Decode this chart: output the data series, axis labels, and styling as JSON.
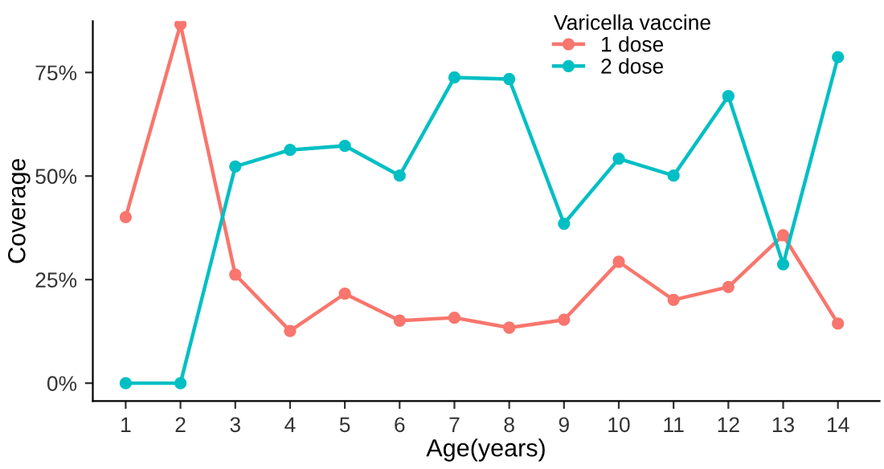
{
  "chart_data": {
    "type": "line",
    "xlabel": "Age(years)",
    "ylabel": "Coverage",
    "legend_title": "Varicella vaccine",
    "x": [
      1,
      2,
      3,
      4,
      5,
      6,
      7,
      8,
      9,
      10,
      11,
      12,
      13,
      14
    ],
    "series": [
      {
        "name": "1 dose",
        "color": "#f8766d",
        "values": [
          40.1,
          86.6,
          26.2,
          12.6,
          21.6,
          15.1,
          15.8,
          13.4,
          15.3,
          29.3,
          20.1,
          23.2,
          35.7,
          14.4
        ]
      },
      {
        "name": "2 dose",
        "color": "#00bfc4",
        "values": [
          0,
          0,
          52.3,
          56.3,
          57.3,
          50.1,
          73.8,
          73.4,
          38.5,
          54.2,
          50.1,
          69.3,
          28.7,
          78.7
        ]
      }
    ],
    "xlim": [
      0.4,
      14.76
    ],
    "xticks": [
      1,
      2,
      3,
      4,
      5,
      6,
      7,
      8,
      9,
      10,
      11,
      12,
      13,
      14
    ],
    "ylim": [
      -4.3,
      87.4
    ],
    "yticks": [
      {
        "value": 0,
        "label": "0%"
      },
      {
        "value": 25,
        "label": "25%"
      },
      {
        "value": 50,
        "label": "50%"
      },
      {
        "value": 75,
        "label": "75%"
      }
    ],
    "grid": false,
    "legend": "top right",
    "marker": "circle",
    "line_style": "solid"
  }
}
